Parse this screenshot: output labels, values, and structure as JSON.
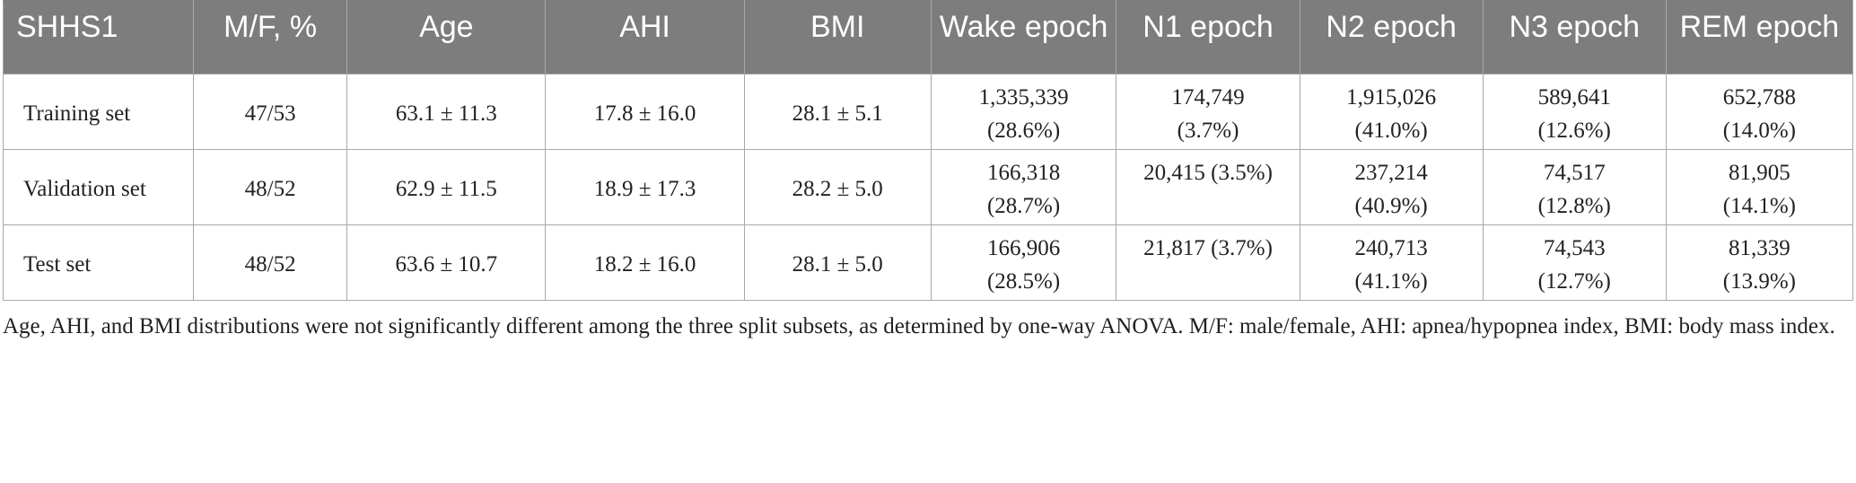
{
  "table": {
    "headers": [
      "SHHS1",
      "M/F, %",
      "Age",
      "AHI",
      "BMI",
      "Wake epoch",
      "N1 epoch",
      "N2 epoch",
      "N3 epoch",
      "REM epoch"
    ],
    "rows": [
      {
        "set": "Training set",
        "mf": "47/53",
        "age": "63.1 ± 11.3",
        "ahi": "17.8 ± 16.0",
        "bmi": "28.1 ± 5.1",
        "wake": [
          "1,335,339",
          "(28.6%)"
        ],
        "n1": [
          "174,749",
          "(3.7%)"
        ],
        "n2": [
          "1,915,026",
          "(41.0%)"
        ],
        "n3": [
          "589,641",
          "(12.6%)"
        ],
        "rem": [
          "652,788",
          "(14.0%)"
        ]
      },
      {
        "set": "Validation set",
        "mf": "48/52",
        "age": "62.9 ± 11.5",
        "ahi": "18.9 ± 17.3",
        "bmi": "28.2 ± 5.0",
        "wake": [
          "166,318",
          "(28.7%)"
        ],
        "n1": [
          "20,415 (3.5%)",
          ""
        ],
        "n2": [
          "237,214",
          "(40.9%)"
        ],
        "n3": [
          "74,517",
          "(12.8%)"
        ],
        "rem": [
          "81,905",
          "(14.1%)"
        ]
      },
      {
        "set": "Test set",
        "mf": "48/52",
        "age": "63.6 ± 10.7",
        "ahi": "18.2 ± 16.0",
        "bmi": "28.1 ± 5.0",
        "wake": [
          "166,906",
          "(28.5%)"
        ],
        "n1": [
          "21,817 (3.7%)",
          ""
        ],
        "n2": [
          "240,713",
          "(41.1%)"
        ],
        "n3": [
          "74,543",
          "(12.7%)"
        ],
        "rem": [
          "81,339",
          "(13.9%)"
        ]
      }
    ]
  },
  "footnote": "Age, AHI, and BMI distributions were not significantly different among the three split subsets, as determined by one-way ANOVA. M/F: male/female, AHI: apnea/hypopnea index, BMI: body mass index.",
  "colors": {
    "header_bg": "#7d7d7d",
    "header_text": "#ffffff",
    "border": "#a8a8a8",
    "body_text": "#222222"
  }
}
